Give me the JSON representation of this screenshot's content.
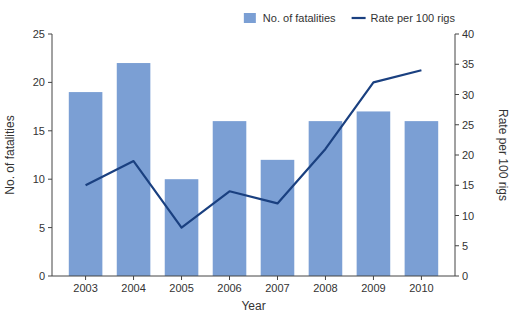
{
  "chart_data": {
    "type": "bar",
    "x": [
      2003,
      2004,
      2005,
      2006,
      2007,
      2008,
      2009,
      2010
    ],
    "xlim": [
      2002.3,
      2010.7
    ],
    "xticks": [
      2003,
      2004,
      2005,
      2006,
      2007,
      2008,
      2009,
      2010
    ],
    "x_label": "Year",
    "y_label": "No. of fatalities",
    "y2_label": "Rate per 100 rigs",
    "ylim": [
      0,
      25
    ],
    "yticks": [
      0,
      5,
      10,
      15,
      20,
      25
    ],
    "y2lim": [
      0,
      40
    ],
    "y2ticks": [
      0,
      5,
      10,
      15,
      20,
      25,
      30,
      35,
      40
    ],
    "series": [
      {
        "name": "No. of fatalities",
        "type": "bar",
        "color": "#7b9fd4",
        "values": [
          19,
          22,
          10,
          16,
          12,
          16,
          17,
          16
        ]
      },
      {
        "name": "Rate per 100 rigs",
        "type": "line",
        "color": "#1a4080",
        "axis": "y2",
        "values": [
          15.0,
          19.0,
          8.0,
          14.0,
          12.0,
          21.0,
          32.0,
          34.0
        ]
      }
    ],
    "legend": "upper right",
    "grid": false
  }
}
